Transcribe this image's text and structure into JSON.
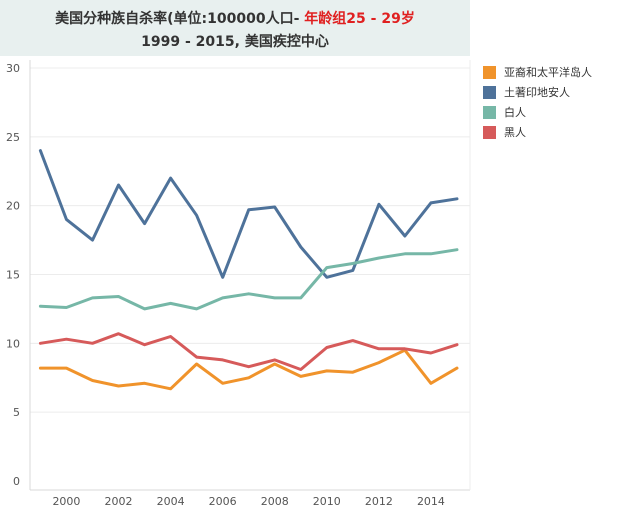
{
  "title": {
    "part1": "美国分种族自杀率(单位:100000人口- ",
    "part2": "年龄组25 - 29岁",
    "line2": "1999 - 2015, 美国疾控中心"
  },
  "chart_data": {
    "type": "line",
    "title": "美国分种族自杀率(单位:100000人口- 年龄组25 - 29岁 1999 - 2015, 美国疾控中心",
    "xlabel": "",
    "ylabel": "",
    "x": [
      1999,
      2000,
      2001,
      2002,
      2003,
      2004,
      2005,
      2006,
      2007,
      2008,
      2009,
      2010,
      2011,
      2012,
      2013,
      2014,
      2015
    ],
    "xticks": [
      "2000",
      "2002",
      "2004",
      "2006",
      "2008",
      "2010",
      "2012",
      "2014"
    ],
    "yticks": [
      "0",
      "5",
      "10",
      "15",
      "20",
      "25",
      "30"
    ],
    "xlim": [
      1998.6,
      2015.5
    ],
    "ylim": [
      0,
      30
    ],
    "grid": true,
    "legend_position": "right",
    "series": [
      {
        "name": "亚裔和太平洋岛人",
        "color": "#f0932b",
        "values": [
          8.2,
          8.2,
          7.3,
          6.9,
          7.1,
          6.7,
          8.5,
          7.1,
          7.5,
          8.5,
          7.6,
          8.0,
          7.9,
          8.6,
          9.5,
          7.1,
          8.2
        ]
      },
      {
        "name": "土著印地安人",
        "color": "#4e729a",
        "values": [
          24.0,
          19.0,
          17.5,
          21.5,
          18.7,
          22.0,
          19.3,
          14.8,
          19.7,
          19.9,
          17.0,
          14.8,
          15.3,
          20.1,
          17.8,
          20.2,
          20.5
        ]
      },
      {
        "name": "白人",
        "color": "#76b7a7",
        "values": [
          12.7,
          12.6,
          13.3,
          13.4,
          12.5,
          12.9,
          12.5,
          13.3,
          13.6,
          13.3,
          13.3,
          15.5,
          15.8,
          16.2,
          16.5,
          16.5,
          16.8
        ]
      },
      {
        "name": "黑人",
        "color": "#d65a5a",
        "values": [
          10.0,
          10.3,
          10.0,
          10.7,
          9.9,
          10.5,
          9.0,
          8.8,
          8.3,
          8.8,
          8.1,
          9.7,
          10.2,
          9.6,
          9.6,
          9.3,
          9.9
        ]
      }
    ]
  }
}
